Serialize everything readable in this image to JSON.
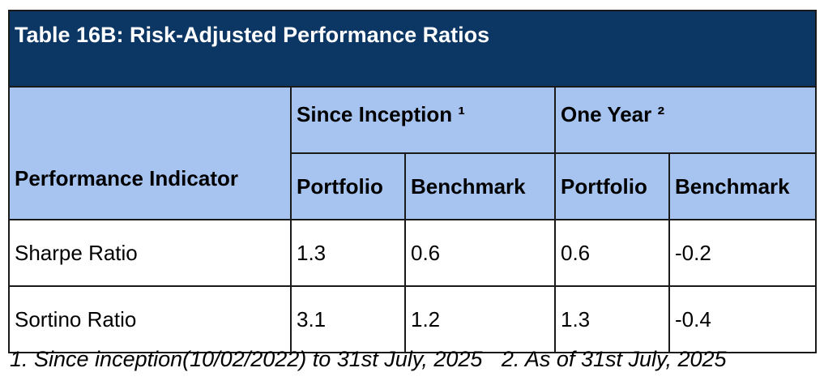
{
  "title": "Table 16B: Risk-Adjusted Performance Ratios",
  "header": {
    "indicator": "Performance Indicator",
    "group1": "Since Inception ¹",
    "group2": "One Year ²",
    "portfolio": "Portfolio",
    "benchmark": "Benchmark"
  },
  "rows": [
    {
      "name": "Sharpe Ratio",
      "si_portfolio": "1.3",
      "si_benchmark": "0.6",
      "oy_portfolio": "0.6",
      "oy_benchmark": "-0.2"
    },
    {
      "name": "Sortino Ratio",
      "si_portfolio": "3.1",
      "si_benchmark": "1.2",
      "oy_portfolio": "1.3",
      "oy_benchmark": "-0.4"
    }
  ],
  "footnotes": {
    "note1": "1. Since inception(10/02/2022) to 31st July, 2025",
    "note2": "2. As of 31st July, 2025"
  },
  "colors": {
    "title_bg": "#0c3663",
    "header_bg": "#a6c4ef"
  }
}
